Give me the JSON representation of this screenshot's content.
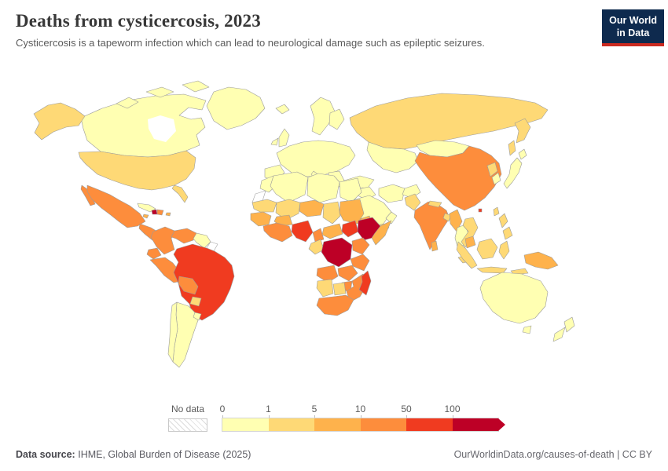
{
  "header": {
    "title": "Deaths from cysticercosis, 2023",
    "subtitle": "Cysticercosis is a tapeworm infection which can lead to neurological damage such as epileptic seizures.",
    "logo": {
      "line1": "Our World",
      "line2": "in Data",
      "bg": "#0e2a4e",
      "accent": "#cb2a20"
    }
  },
  "map": {
    "no_data_label": "No data",
    "legend_ticks": [
      "0",
      "1",
      "5",
      "10",
      "50",
      "100"
    ],
    "colors": [
      "#FFFFB2",
      "#FED976",
      "#FEB24C",
      "#FD8D3C",
      "#F03B20",
      "#BD0026"
    ],
    "border_color": "#9b9b9b"
  },
  "chart_data": {
    "type": "heatmap",
    "subtype": "choropleth world map",
    "title": "Deaths from cysticercosis, 2023",
    "legend_position": "bottom",
    "bins": [
      "0-1",
      "1-5",
      "5-10",
      "10-50",
      "50-100",
      "100+"
    ],
    "bin_colors": [
      "#FFFFB2",
      "#FED976",
      "#FEB24C",
      "#FD8D3C",
      "#F03B20",
      "#BD0026"
    ],
    "no_data_label": "No data",
    "region_bins": {
      "canada": 0,
      "greenland": 0,
      "alaska": 1,
      "usa": 1,
      "mexico": 3,
      "central-america": 3,
      "cuba": 0,
      "jamaica": 2,
      "haiti": 5,
      "dominican-republic": 3,
      "puerto-rico": 2,
      "colombia": 3,
      "venezuela": 3,
      "guyana-suriname": 0,
      "french-guiana": "no_data",
      "ecuador": 3,
      "peru": 3,
      "brazil": 4,
      "bolivia": 3,
      "paraguay": 1,
      "chile": 0,
      "argentina": 0,
      "uruguay": 0,
      "iceland": 0,
      "scandinavia": 0,
      "finland": 0,
      "uk": 0,
      "ireland": 0,
      "europe": 0,
      "iberia": 0,
      "italy": 0,
      "balkans": 0,
      "russia": 1,
      "kazakhstan-central-asia": 0,
      "mongolia": 0,
      "china": 3,
      "north-korea": 1,
      "south-korea": 0,
      "japan": 0,
      "taiwan": 1,
      "hong-kong": 4,
      "turkey": 0,
      "iraq-syria": 0,
      "iran": 0,
      "afghanistan": 0,
      "saudi-arabia": 0,
      "yemen": 1,
      "oman": 0,
      "pakistan": 1,
      "india": 3,
      "nepal": 1,
      "bangladesh": 1,
      "sri-lanka": 2,
      "myanmar": 2,
      "thailand": 0,
      "laos-vietnam": 1,
      "cambodia": 2,
      "malaysia": 1,
      "indonesia": 1,
      "philippines": 1,
      "new-guinea": 2,
      "morocco": 0,
      "western-sahara": "no_data",
      "algeria": 0,
      "libya": 0,
      "egypt": 0,
      "mauritania": 1,
      "mali": 1,
      "niger": 2,
      "chad": 1,
      "sudan": 2,
      "eritrea": 2,
      "senegal-guinea": 2,
      "burkina-faso": 2,
      "west-africa": 3,
      "nigeria": 4,
      "cameroon": 3,
      "central-african-republic": 2,
      "south-sudan": 4,
      "ethiopia": 5,
      "somalia": 2,
      "gabon-congo": 1,
      "drc": 5,
      "uganda-kenya": 3,
      "tanzania": 3,
      "angola": 3,
      "zambia": 3,
      "zimbabwe": 3,
      "mozambique": 3,
      "namibia": 1,
      "botswana": 1,
      "south-africa": 3,
      "madagascar": 4,
      "australia": 0,
      "new-zealand": 0
    }
  },
  "footer": {
    "source_label": "Data source:",
    "source_value": "IHME, Global Burden of Disease (2025)",
    "rights": "OurWorldinData.org/causes-of-death | CC BY"
  }
}
